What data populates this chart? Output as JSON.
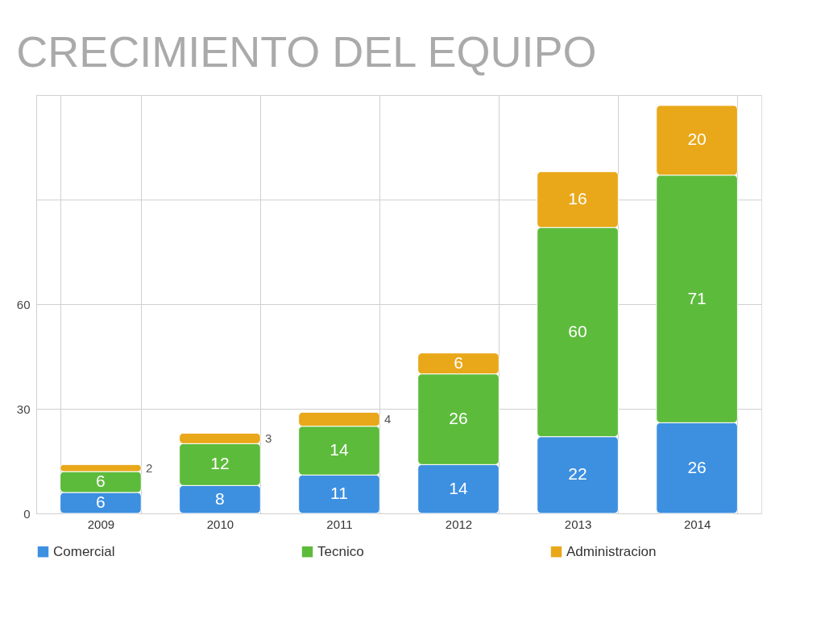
{
  "chart_data": {
    "type": "bar",
    "title": "CRECIMIENTO DEL EQUIPO",
    "categories": [
      "2009",
      "2010",
      "2011",
      "2012",
      "2013",
      "2014"
    ],
    "stacked": true,
    "series": [
      {
        "name": "Comercial",
        "color": "#3d8fe0",
        "values": [
          6,
          8,
          11,
          14,
          22,
          26
        ]
      },
      {
        "name": "Tecnico",
        "color": "#5dbb3c",
        "values": [
          6,
          12,
          14,
          26,
          60,
          71
        ]
      },
      {
        "name": "Administracion",
        "color": "#e9a81a",
        "values": [
          2,
          3,
          4,
          6,
          16,
          20
        ]
      }
    ],
    "ylim": [
      0,
      120
    ],
    "yticks": [
      0,
      30,
      60,
      {
        "value": 90,
        "label": null
      },
      {
        "value": 120,
        "label": null
      }
    ],
    "grid": true,
    "legend": "bottom",
    "data_labels": true
  }
}
